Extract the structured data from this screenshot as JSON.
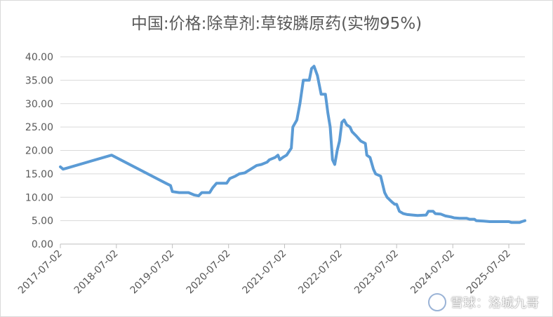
{
  "chart_data": {
    "type": "line",
    "title": "中国:价格:除草剂:草铵膦原药(实物95%)",
    "ylim": [
      0,
      40
    ],
    "y_ticks": [
      "0.00",
      "5.00",
      "10.00",
      "15.00",
      "20.00",
      "25.00",
      "30.00",
      "35.00",
      "40.00"
    ],
    "x_ticks": [
      "2017-07-02",
      "2018-07-02",
      "2019-07-02",
      "2020-07-02",
      "2021-07-02",
      "2022-07-02",
      "2023-07-02",
      "2024-07-02",
      "2025-07-02"
    ],
    "x_range": [
      "2017-07-02",
      "2025-10-15"
    ],
    "grid": "horizontal",
    "color": "#5b9bd5",
    "series": [
      {
        "points": [
          [
            "2017-07-02",
            16.5
          ],
          [
            "2017-07-20",
            16.0
          ],
          [
            "2017-08-10",
            16.2
          ],
          [
            "2018-06-01",
            19.0
          ],
          [
            "2019-05-20",
            13.0
          ],
          [
            "2019-06-20",
            12.5
          ],
          [
            "2019-07-02",
            11.2
          ],
          [
            "2019-08-15",
            11.0
          ],
          [
            "2019-10-15",
            11.0
          ],
          [
            "2019-11-20",
            10.5
          ],
          [
            "2019-12-20",
            10.3
          ],
          [
            "2020-01-10",
            11.0
          ],
          [
            "2020-03-01",
            11.0
          ],
          [
            "2020-03-20",
            12.0
          ],
          [
            "2020-04-15",
            13.0
          ],
          [
            "2020-06-20",
            13.0
          ],
          [
            "2020-07-10",
            14.0
          ],
          [
            "2020-08-15",
            14.5
          ],
          [
            "2020-09-10",
            15.0
          ],
          [
            "2020-10-15",
            15.2
          ],
          [
            "2021-01-01",
            16.8
          ],
          [
            "2021-02-01",
            17.0
          ],
          [
            "2021-03-10",
            17.5
          ],
          [
            "2021-03-25",
            18.0
          ],
          [
            "2021-05-01",
            18.5
          ],
          [
            "2021-05-20",
            19.0
          ],
          [
            "2021-06-01",
            18.0
          ],
          [
            "2021-06-20",
            18.5
          ],
          [
            "2021-07-15",
            19.0
          ],
          [
            "2021-08-15",
            20.5
          ],
          [
            "2021-08-25",
            25.0
          ],
          [
            "2021-09-20",
            26.5
          ],
          [
            "2021-10-10",
            30.0
          ],
          [
            "2021-11-01",
            35.0
          ],
          [
            "2021-12-10",
            35.0
          ],
          [
            "2021-12-25",
            37.5
          ],
          [
            "2022-01-10",
            38.0
          ],
          [
            "2022-02-01",
            36.0
          ],
          [
            "2022-02-25",
            32.0
          ],
          [
            "2022-03-25",
            32.0
          ],
          [
            "2022-04-10",
            28.0
          ],
          [
            "2022-04-25",
            25.0
          ],
          [
            "2022-05-10",
            18.0
          ],
          [
            "2022-05-25",
            17.0
          ],
          [
            "2022-06-10",
            20.0
          ],
          [
            "2022-06-25",
            22.0
          ],
          [
            "2022-07-10",
            26.0
          ],
          [
            "2022-07-25",
            26.5
          ],
          [
            "2022-08-10",
            25.5
          ],
          [
            "2022-09-01",
            25.0
          ],
          [
            "2022-09-15",
            24.0
          ],
          [
            "2022-10-15",
            23.0
          ],
          [
            "2022-11-10",
            22.0
          ],
          [
            "2022-12-10",
            21.5
          ],
          [
            "2022-12-20",
            19.0
          ],
          [
            "2023-01-10",
            18.5
          ],
          [
            "2023-02-01",
            16.0
          ],
          [
            "2023-02-15",
            15.0
          ],
          [
            "2023-03-20",
            14.5
          ],
          [
            "2023-04-15",
            11.0
          ],
          [
            "2023-05-01",
            10.0
          ],
          [
            "2023-06-01",
            9.0
          ],
          [
            "2023-06-20",
            8.5
          ],
          [
            "2023-07-02",
            8.5
          ],
          [
            "2023-07-20",
            7.0
          ],
          [
            "2023-08-15",
            6.5
          ],
          [
            "2023-09-10",
            6.3
          ],
          [
            "2023-10-15",
            6.2
          ],
          [
            "2023-11-15",
            6.1
          ],
          [
            "2024-01-10",
            6.2
          ],
          [
            "2024-01-25",
            7.0
          ],
          [
            "2024-02-25",
            7.0
          ],
          [
            "2024-03-10",
            6.5
          ],
          [
            "2024-04-15",
            6.4
          ],
          [
            "2024-05-15",
            6.0
          ],
          [
            "2024-06-20",
            5.8
          ],
          [
            "2024-07-10",
            5.6
          ],
          [
            "2024-08-15",
            5.5
          ],
          [
            "2024-10-01",
            5.5
          ],
          [
            "2024-10-20",
            5.3
          ],
          [
            "2024-11-20",
            5.3
          ],
          [
            "2024-12-01",
            5.0
          ],
          [
            "2025-01-20",
            4.9
          ],
          [
            "2025-03-01",
            4.8
          ],
          [
            "2025-06-01",
            4.8
          ],
          [
            "2025-07-02",
            4.8
          ],
          [
            "2025-07-20",
            4.6
          ],
          [
            "2025-09-10",
            4.6
          ],
          [
            "2025-09-25",
            4.8
          ],
          [
            "2025-10-15",
            5.0
          ]
        ]
      }
    ]
  },
  "watermark": {
    "text": "雪球：洛城九哥",
    "icon": "snowball-logo-icon"
  }
}
